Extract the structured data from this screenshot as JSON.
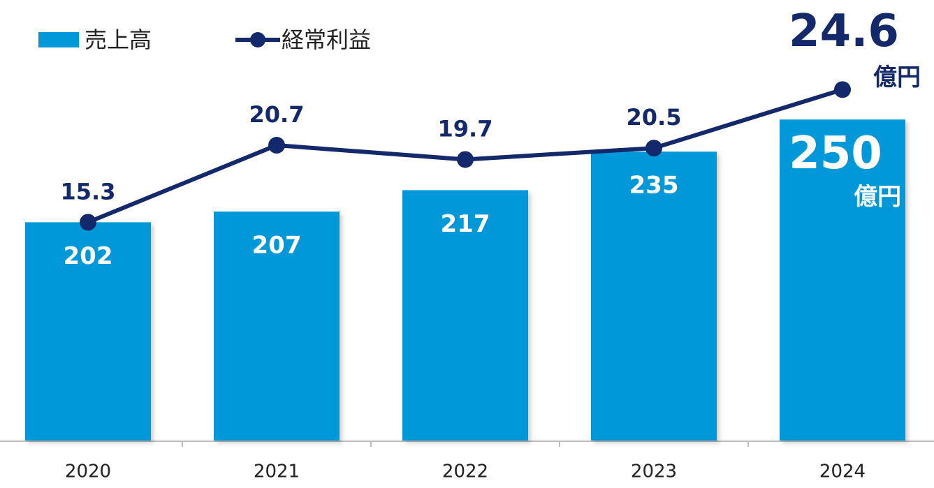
{
  "chart_data": {
    "type": "bar",
    "categories": [
      "2020",
      "2021",
      "2022",
      "2023",
      "2024"
    ],
    "series": [
      {
        "name": "売上高",
        "color": "#0098d8",
        "values": [
          202,
          207,
          217,
          235,
          250
        ]
      },
      {
        "name": "経常利益",
        "color": "#13296b",
        "type": "line",
        "axis": "y2",
        "values": [
          15.3,
          20.7,
          19.7,
          20.5,
          24.6
        ]
      }
    ],
    "unit": "億円",
    "ylim": [
      100,
      300
    ],
    "y2lim": [
      0,
      30
    ],
    "legend": "top-left"
  }
}
